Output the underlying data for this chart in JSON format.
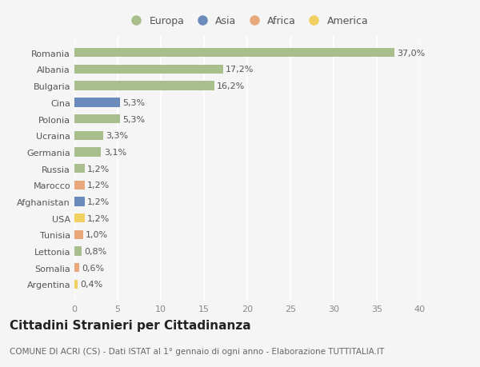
{
  "categories": [
    "Romania",
    "Albania",
    "Bulgaria",
    "Cina",
    "Polonia",
    "Ucraina",
    "Germania",
    "Russia",
    "Marocco",
    "Afghanistan",
    "USA",
    "Tunisia",
    "Lettonia",
    "Somalia",
    "Argentina"
  ],
  "values": [
    37.0,
    17.2,
    16.2,
    5.3,
    5.3,
    3.3,
    3.1,
    1.2,
    1.2,
    1.2,
    1.2,
    1.0,
    0.8,
    0.6,
    0.4
  ],
  "labels": [
    "37,0%",
    "17,2%",
    "16,2%",
    "5,3%",
    "5,3%",
    "3,3%",
    "3,1%",
    "1,2%",
    "1,2%",
    "1,2%",
    "1,2%",
    "1,0%",
    "0,8%",
    "0,6%",
    "0,4%"
  ],
  "continents": [
    "Europa",
    "Europa",
    "Europa",
    "Asia",
    "Europa",
    "Europa",
    "Europa",
    "Europa",
    "Africa",
    "Asia",
    "America",
    "Africa",
    "Europa",
    "Africa",
    "America"
  ],
  "continent_colors": {
    "Europa": "#a8be8c",
    "Asia": "#6b8cba",
    "Africa": "#e8a87c",
    "America": "#f0d060"
  },
  "legend_order": [
    "Europa",
    "Asia",
    "Africa",
    "America"
  ],
  "legend_colors": [
    "#a8be8c",
    "#6b8cba",
    "#e8a87c",
    "#f0d060"
  ],
  "xlim": [
    0,
    40
  ],
  "xticks": [
    0,
    5,
    10,
    15,
    20,
    25,
    30,
    35,
    40
  ],
  "title": "Cittadini Stranieri per Cittadinanza",
  "subtitle": "COMUNE DI ACRI (CS) - Dati ISTAT al 1° gennaio di ogni anno - Elaborazione TUTTITALIA.IT",
  "background_color": "#f5f5f5",
  "bar_height": 0.55,
  "grid_color": "#ffffff",
  "label_fontsize": 8,
  "tick_fontsize": 8,
  "title_fontsize": 11,
  "subtitle_fontsize": 7.5
}
